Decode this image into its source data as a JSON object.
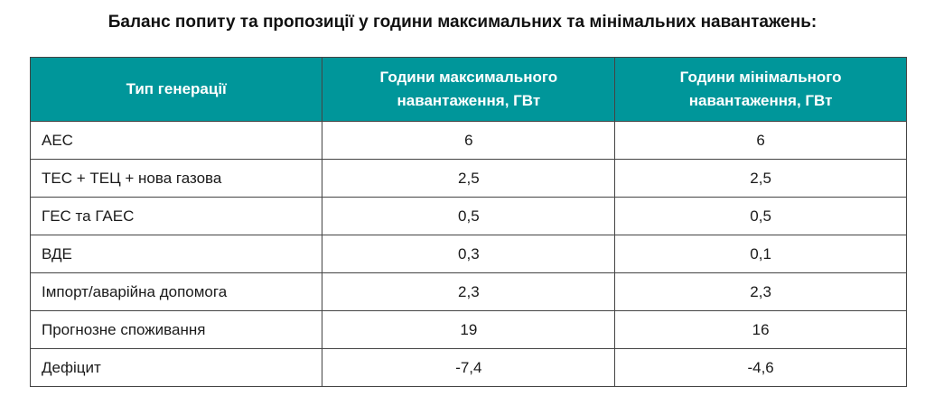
{
  "title": "Баланс попиту та пропозиції у години максимальних та мінімальних навантажень:",
  "colors": {
    "header_bg": "#00969a",
    "header_text": "#ffffff"
  },
  "table": {
    "headers": [
      "Тип генерації",
      "Години максимального навантаження, ГВт",
      "Години мінімального навантаження, ГВт"
    ],
    "rows": [
      [
        "АЕС",
        "6",
        "6"
      ],
      [
        "ТЕС + ТЕЦ + нова газова",
        "2,5",
        "2,5"
      ],
      [
        "ГЕС та ГАЕС",
        "0,5",
        "0,5"
      ],
      [
        "ВДЕ",
        "0,3",
        "0,1"
      ],
      [
        "Імпорт/аварійна допомога",
        "2,3",
        "2,3"
      ],
      [
        "Прогнозне споживання",
        "19",
        "16"
      ],
      [
        "Дефіцит",
        "-7,4",
        "-4,6"
      ]
    ]
  }
}
